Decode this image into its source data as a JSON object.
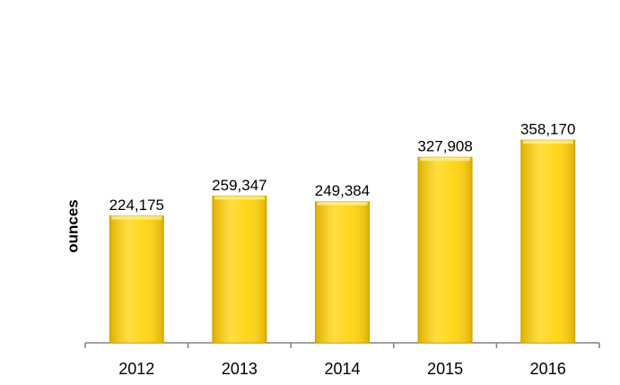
{
  "chart_data": {
    "type": "bar",
    "y_label": "ounces",
    "categories": [
      "2012",
      "2013",
      "2014",
      "2015",
      "2016"
    ],
    "values": [
      224175,
      259347,
      249384,
      327908,
      358170
    ],
    "value_labels": [
      "224,175",
      "259,347",
      "249,384",
      "327,908",
      "358,170"
    ],
    "color": "#ffd200",
    "ylim": [
      0,
      590000
    ]
  }
}
